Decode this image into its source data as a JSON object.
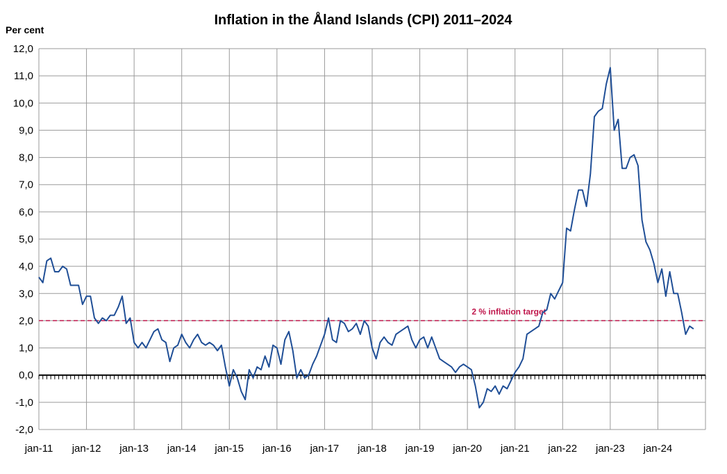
{
  "chart_data": {
    "type": "line",
    "title": "Inflation in the Åland Islands (CPI) 2011–2024",
    "ylabel": "Per cent",
    "xlabel": "",
    "ylim": [
      -2.0,
      12.0
    ],
    "yticks": [
      "12,0",
      "11,0",
      "10,0",
      "9,0",
      "8,0",
      "7,0",
      "6,0",
      "5,0",
      "4,0",
      "3,0",
      "2,0",
      "1,0",
      "0,0",
      "-1,0",
      "-2,0"
    ],
    "ytick_values": [
      12,
      11,
      10,
      9,
      8,
      7,
      6,
      5,
      4,
      3,
      2,
      1,
      0,
      -1,
      -2
    ],
    "xticks": [
      "jan-11",
      "jan-12",
      "jan-13",
      "jan-14",
      "jan-15",
      "jan-16",
      "jan-17",
      "jan-18",
      "jan-19",
      "jan-20",
      "jan-21",
      "jan-22",
      "jan-23",
      "jan-24"
    ],
    "x_start": "2011-01",
    "x_end": "2024-12",
    "grid": true,
    "line_color": "#1f4e96",
    "target": {
      "value": 2.0,
      "label": "2 % inflation target",
      "color": "#c0174c"
    },
    "series": [
      {
        "values": [
          3.6,
          3.4,
          4.2,
          4.3,
          3.8,
          3.8,
          4.0,
          3.9,
          3.3,
          3.3,
          3.3,
          2.6,
          2.9,
          2.9,
          2.1,
          1.9,
          2.1,
          2.0,
          2.2,
          2.2,
          2.5,
          2.9,
          1.9,
          2.1,
          1.2,
          1.0,
          1.2,
          1.0,
          1.3,
          1.6,
          1.7,
          1.3,
          1.2,
          0.5,
          1.0,
          1.1,
          1.5,
          1.2,
          1.0,
          1.3,
          1.5,
          1.2,
          1.1,
          1.2,
          1.1,
          0.9,
          1.1,
          0.3,
          -0.4,
          0.2,
          -0.1,
          -0.6,
          -0.9,
          0.2,
          -0.1,
          0.3,
          0.2,
          0.7,
          0.3,
          1.1,
          1.0,
          0.4,
          1.3,
          1.6,
          0.9,
          -0.1,
          0.2,
          -0.1,
          0.0,
          0.4,
          0.7,
          1.1,
          1.5,
          2.1,
          1.3,
          1.2,
          2.0,
          1.9,
          1.6,
          1.7,
          1.9,
          1.5,
          2.0,
          1.8,
          1.0,
          0.6,
          1.2,
          1.4,
          1.2,
          1.1,
          1.5,
          1.6,
          1.7,
          1.8,
          1.3,
          1.0,
          1.3,
          1.4,
          1.0,
          1.4,
          1.0,
          0.6,
          0.5,
          0.4,
          0.3,
          0.1,
          0.3,
          0.4,
          0.3,
          0.2,
          -0.4,
          -1.2,
          -1.0,
          -0.5,
          -0.6,
          -0.4,
          -0.7,
          -0.4,
          -0.5,
          -0.2,
          0.1,
          0.3,
          0.6,
          1.5,
          1.6,
          1.7,
          1.8,
          2.3,
          2.4,
          3.0,
          2.8,
          3.1,
          3.4,
          5.4,
          5.3,
          6.1,
          6.8,
          6.8,
          6.2,
          7.4,
          9.5,
          9.7,
          9.8,
          10.7,
          11.3,
          9.0,
          9.4,
          7.6,
          7.6,
          8.0,
          8.1,
          7.7,
          5.7,
          4.9,
          4.6,
          4.1,
          3.4,
          3.9,
          2.9,
          3.8,
          3.0,
          3.0,
          2.3,
          1.5,
          1.8,
          1.7
        ]
      }
    ]
  }
}
